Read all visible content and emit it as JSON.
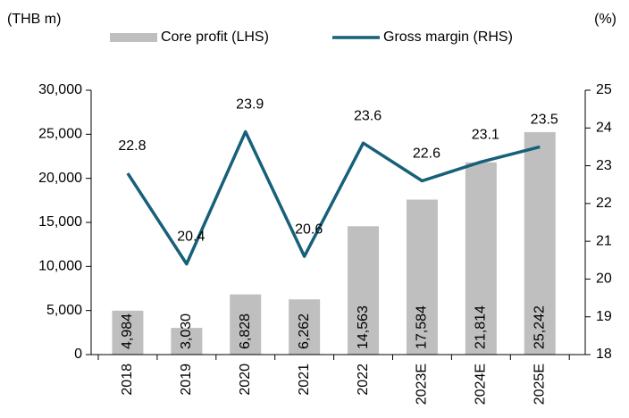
{
  "chart_data": {
    "type": "bar-line",
    "y_label": "(THB m)",
    "y2_label": "(%)",
    "categories": [
      "2018",
      "2019",
      "2020",
      "2021",
      "2022",
      "2023E",
      "2024E",
      "2025E"
    ],
    "series": [
      {
        "name": "Core profit (LHS)",
        "type": "bar",
        "axis": "y",
        "color": "#bfbfbf",
        "values": [
          4984,
          3030,
          6828,
          6262,
          14563,
          17584,
          21814,
          25242
        ],
        "value_labels": [
          "4,984",
          "3,030",
          "6,828",
          "6,262",
          "14,563",
          "17,584",
          "21,814",
          "25,242"
        ]
      },
      {
        "name": "Gross margin (RHS)",
        "type": "line",
        "axis": "y2",
        "color": "#17607a",
        "values": [
          22.8,
          20.4,
          23.9,
          20.6,
          23.6,
          22.6,
          23.1,
          23.5
        ]
      }
    ],
    "ylim": [
      0,
      30000
    ],
    "yticks": [
      0,
      {
        "value": 5000,
        "label": "5,000"
      },
      {
        "value": 10000,
        "label": "10,000"
      },
      {
        "value": 15000,
        "label": "15,000"
      },
      {
        "value": 20000,
        "label": "20,000"
      },
      {
        "value": 25000,
        "label": "25,000"
      },
      {
        "value": 30000,
        "label": "30,000"
      }
    ],
    "y2lim": [
      18,
      25
    ],
    "y2ticks": [
      18,
      19,
      20,
      21,
      22,
      23,
      24,
      25
    ]
  }
}
